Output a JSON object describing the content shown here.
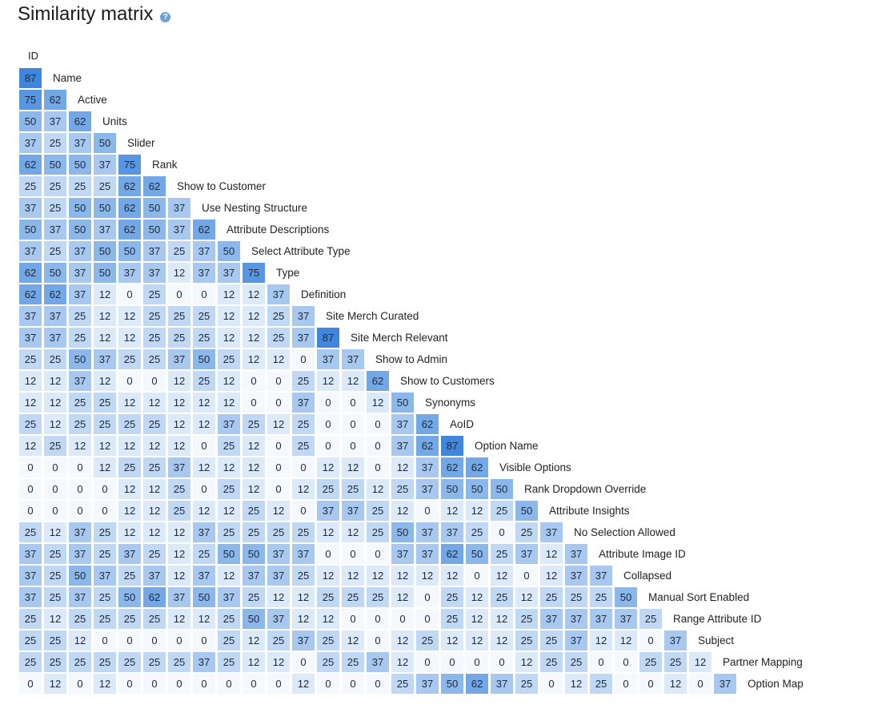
{
  "page": {
    "title": "Similarity matrix",
    "help_icon": "question-circle-icon"
  },
  "chart_data": {
    "type": "heatmap",
    "title": "Similarity matrix",
    "column_header": "ID",
    "color_scale": {
      "low": "#f5f9fe",
      "high": "#3f86dc"
    },
    "value_range": [
      0,
      100
    ],
    "labels": [
      "Name",
      "Active",
      "Units",
      "Slider",
      "Rank",
      "Show to Customer",
      "Use Nesting Structure",
      "Attribute Descriptions",
      "Select Attribute Type",
      "Type",
      "Definition",
      "Site Merch Curated",
      "Site Merch Relevant",
      "Show to Admin",
      "Show to Customers",
      "Synonyms",
      "AoID",
      "Option Name",
      "Visible Options",
      "Rank Dropdown Override",
      "Attribute Insights",
      "No Selection Allowed",
      "Attribute Image ID",
      "Collapsed",
      "Manual Sort Enabled",
      "Range Attribute ID",
      "Subject",
      "Partner Mapping",
      "Option Map"
    ],
    "rows": [
      [
        87
      ],
      [
        75,
        62
      ],
      [
        50,
        37,
        62
      ],
      [
        37,
        25,
        37,
        50
      ],
      [
        62,
        50,
        50,
        37,
        75
      ],
      [
        25,
        25,
        25,
        25,
        62,
        62
      ],
      [
        37,
        25,
        50,
        50,
        62,
        50,
        37
      ],
      [
        50,
        37,
        50,
        37,
        62,
        50,
        37,
        62
      ],
      [
        37,
        25,
        37,
        50,
        50,
        37,
        25,
        37,
        50
      ],
      [
        62,
        50,
        37,
        50,
        37,
        37,
        12,
        37,
        37,
        75
      ],
      [
        62,
        62,
        37,
        12,
        0,
        25,
        0,
        0,
        12,
        12,
        37
      ],
      [
        37,
        37,
        25,
        12,
        12,
        25,
        25,
        25,
        12,
        12,
        25,
        37
      ],
      [
        37,
        37,
        25,
        12,
        12,
        25,
        25,
        25,
        12,
        12,
        25,
        37,
        87
      ],
      [
        25,
        25,
        50,
        37,
        25,
        25,
        37,
        50,
        25,
        12,
        12,
        0,
        37,
        37
      ],
      [
        12,
        12,
        37,
        12,
        0,
        0,
        12,
        25,
        12,
        0,
        0,
        25,
        12,
        12,
        62
      ],
      [
        12,
        12,
        25,
        25,
        12,
        12,
        12,
        12,
        12,
        0,
        0,
        37,
        0,
        0,
        12,
        50
      ],
      [
        25,
        12,
        25,
        25,
        25,
        25,
        12,
        12,
        37,
        25,
        12,
        25,
        0,
        0,
        0,
        37,
        62
      ],
      [
        12,
        25,
        12,
        12,
        12,
        12,
        12,
        0,
        25,
        12,
        0,
        25,
        0,
        0,
        0,
        37,
        62,
        87
      ],
      [
        0,
        0,
        0,
        12,
        25,
        25,
        37,
        12,
        12,
        12,
        0,
        0,
        12,
        12,
        0,
        12,
        37,
        62,
        62
      ],
      [
        0,
        0,
        0,
        0,
        12,
        12,
        25,
        0,
        25,
        12,
        0,
        12,
        25,
        25,
        12,
        25,
        37,
        50,
        50,
        50
      ],
      [
        0,
        0,
        0,
        0,
        12,
        12,
        25,
        12,
        12,
        25,
        12,
        0,
        37,
        37,
        25,
        12,
        0,
        12,
        12,
        25,
        50
      ],
      [
        25,
        12,
        37,
        25,
        12,
        12,
        12,
        37,
        25,
        25,
        25,
        25,
        12,
        12,
        25,
        50,
        37,
        37,
        25,
        0,
        25,
        37
      ],
      [
        37,
        25,
        37,
        25,
        37,
        25,
        12,
        25,
        50,
        50,
        37,
        37,
        0,
        0,
        0,
        37,
        37,
        62,
        50,
        25,
        37,
        12,
        37
      ],
      [
        37,
        25,
        50,
        37,
        25,
        37,
        12,
        37,
        12,
        37,
        37,
        25,
        12,
        12,
        12,
        12,
        12,
        12,
        0,
        12,
        0,
        12,
        37,
        37
      ],
      [
        37,
        25,
        37,
        25,
        50,
        62,
        37,
        50,
        37,
        25,
        12,
        12,
        25,
        25,
        25,
        12,
        0,
        25,
        12,
        25,
        12,
        25,
        25,
        25,
        50
      ],
      [
        25,
        12,
        25,
        25,
        25,
        25,
        12,
        12,
        25,
        50,
        37,
        12,
        12,
        0,
        0,
        0,
        0,
        25,
        12,
        12,
        25,
        37,
        37,
        37,
        37,
        25
      ],
      [
        25,
        25,
        12,
        0,
        0,
        0,
        0,
        0,
        25,
        12,
        25,
        37,
        25,
        12,
        0,
        12,
        25,
        12,
        12,
        12,
        25,
        25,
        37,
        12,
        12,
        0,
        37
      ],
      [
        25,
        25,
        25,
        25,
        25,
        25,
        25,
        37,
        25,
        12,
        12,
        0,
        25,
        25,
        37,
        12,
        0,
        0,
        0,
        0,
        12,
        25,
        25,
        0,
        0,
        25,
        25,
        12
      ],
      [
        0,
        12,
        0,
        12,
        0,
        0,
        0,
        0,
        0,
        0,
        0,
        12,
        0,
        0,
        0,
        25,
        37,
        50,
        62,
        37,
        25,
        0,
        12,
        25,
        0,
        0,
        12,
        0,
        37
      ]
    ]
  }
}
